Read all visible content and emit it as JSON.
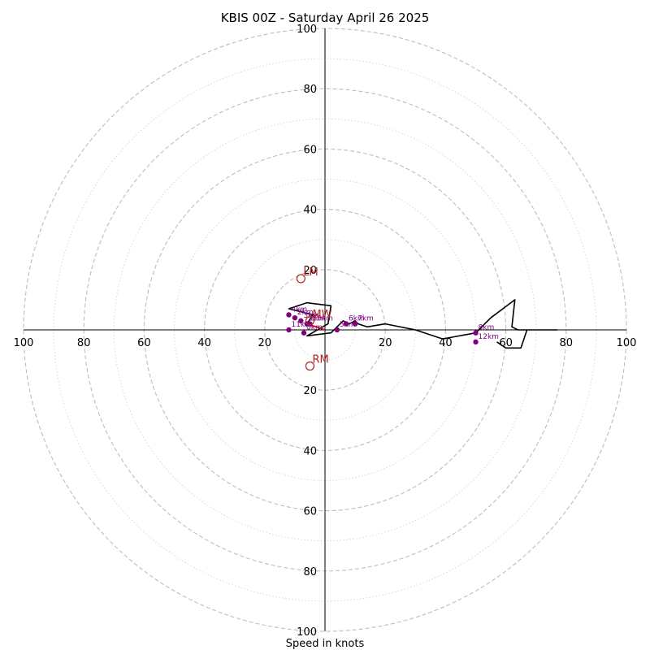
{
  "chart_data": {
    "type": "line",
    "title": "KBIS 00Z - Saturday April 26 2025",
    "xlabel": "Speed in knots",
    "ylabel": "",
    "axis_range": [
      -100,
      100
    ],
    "ring_labels": [
      "100",
      "80",
      "60",
      "40",
      "20",
      "20",
      "40",
      "60",
      "80",
      "100"
    ],
    "ring_values": [
      -100,
      -80,
      -60,
      -40,
      -20,
      20,
      40,
      60,
      80,
      100
    ],
    "grid": true,
    "colors": {
      "hodograph": "#000000",
      "height_markers": "#800080",
      "motion_markers": "#b22222",
      "grid": "#bdbdbd"
    },
    "hodograph": {
      "u": [
        0,
        -6,
        -4,
        -12,
        -6,
        2,
        1,
        -6,
        2,
        4,
        6,
        8,
        10,
        11,
        14,
        20,
        30,
        39,
        50,
        55,
        63,
        62,
        64,
        65,
        68,
        76,
        77,
        67,
        66,
        65,
        60,
        57
      ],
      "v": [
        0,
        2,
        5,
        7,
        9,
        8,
        2,
        -2,
        -1,
        1,
        3,
        2,
        3,
        2,
        1,
        2,
        0,
        -3,
        -1,
        4,
        10,
        1,
        0,
        0,
        0,
        0,
        0,
        0,
        -3,
        -6,
        -6,
        -4
      ]
    },
    "height_markers": [
      {
        "label": "4km",
        "u": -12,
        "v": 5
      },
      {
        "label": "2km",
        "u": -10,
        "v": 4
      },
      {
        "label": "3km",
        "u": -8,
        "v": 3
      },
      {
        "label": "1km",
        "u": -6,
        "v": 2
      },
      {
        "label": "10km",
        "u": -5,
        "v": 2
      },
      {
        "label": "0km",
        "u": -7,
        "v": -1
      },
      {
        "label": "11km",
        "u": -12,
        "v": 0
      },
      {
        "label": "6km",
        "u": 7,
        "v": 2
      },
      {
        "label": "7km",
        "u": 10,
        "v": 2
      },
      {
        "label": "5km",
        "u": 4,
        "v": 0
      },
      {
        "label": "8km",
        "u": 50,
        "v": -1
      },
      {
        "label": "12km",
        "u": 50,
        "v": -4
      }
    ],
    "storm_motion": [
      {
        "label": "LM",
        "u": -8,
        "v": 17
      },
      {
        "label": "MW",
        "u": -5,
        "v": 3
      },
      {
        "label": "RM",
        "u": -5,
        "v": -12
      }
    ],
    "shear_vector": {
      "from": [
        -6,
        2
      ],
      "to": [
        0,
        0
      ]
    }
  }
}
